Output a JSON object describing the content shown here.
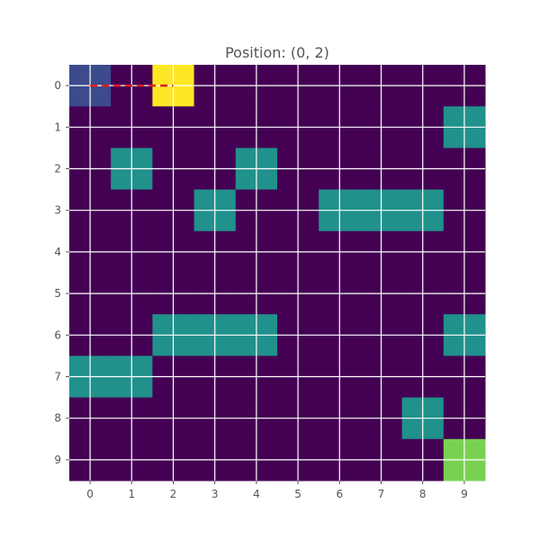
{
  "title": "Position: (0, 2)",
  "grid": {
    "rows": 10,
    "cols": 10,
    "x_ticks": [
      "0",
      "1",
      "2",
      "3",
      "4",
      "5",
      "6",
      "7",
      "8",
      "9"
    ],
    "y_ticks": [
      "0",
      "1",
      "2",
      "3",
      "4",
      "5",
      "6",
      "7",
      "8",
      "9"
    ],
    "gridlines": true,
    "cells": [
      [
        1,
        0,
        3,
        0,
        0,
        0,
        0,
        0,
        0,
        0
      ],
      [
        0,
        0,
        0,
        0,
        0,
        0,
        0,
        0,
        0,
        2
      ],
      [
        0,
        2,
        0,
        0,
        2,
        0,
        0,
        0,
        0,
        0
      ],
      [
        0,
        0,
        0,
        2,
        0,
        0,
        2,
        2,
        2,
        0
      ],
      [
        0,
        0,
        0,
        0,
        0,
        0,
        0,
        0,
        0,
        0
      ],
      [
        0,
        0,
        0,
        0,
        0,
        0,
        0,
        0,
        0,
        0
      ],
      [
        0,
        0,
        2,
        2,
        2,
        0,
        0,
        0,
        0,
        2
      ],
      [
        2,
        2,
        0,
        0,
        0,
        0,
        0,
        0,
        0,
        0
      ],
      [
        0,
        0,
        0,
        0,
        0,
        0,
        0,
        0,
        2,
        0
      ],
      [
        0,
        0,
        0,
        0,
        0,
        0,
        0,
        0,
        0,
        4
      ]
    ],
    "cell_legend": {
      "0": "empty",
      "1": "start",
      "2": "obstacle",
      "3": "agent",
      "4": "goal"
    }
  },
  "path": {
    "points": [
      [
        0,
        0
      ],
      [
        0,
        1
      ],
      [
        0,
        2
      ]
    ],
    "color": "#e11d1d",
    "style": "dashed"
  },
  "colors": {
    "empty": "#440154",
    "start": "#3b4b8c",
    "obstacle": "#21918c",
    "agent": "#fde725",
    "goal": "#7ad151",
    "gridline": "#ffffff",
    "text": "#555555"
  }
}
